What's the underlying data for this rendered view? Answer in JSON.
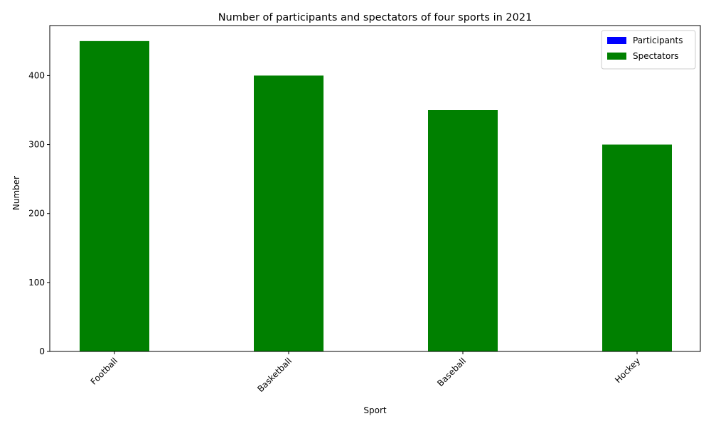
{
  "chart_data": {
    "type": "bar",
    "stacked": true,
    "title": "Number of participants and spectators of four sports in 2021",
    "xlabel": "Sport",
    "ylabel": "Number",
    "categories": [
      "Football",
      "Basketball",
      "Baseball",
      "Hockey"
    ],
    "series": [
      {
        "name": "Participants",
        "values": [
          0,
          0,
          0,
          0
        ],
        "color": "#0000ff"
      },
      {
        "name": "Spectators",
        "values": [
          450,
          400,
          350,
          300
        ],
        "color": "#008000"
      }
    ],
    "ylim": [
      0,
      472.5
    ],
    "yticks": [
      0,
      100,
      200,
      300,
      400
    ],
    "legend_position": "top-right",
    "grid": false
  }
}
